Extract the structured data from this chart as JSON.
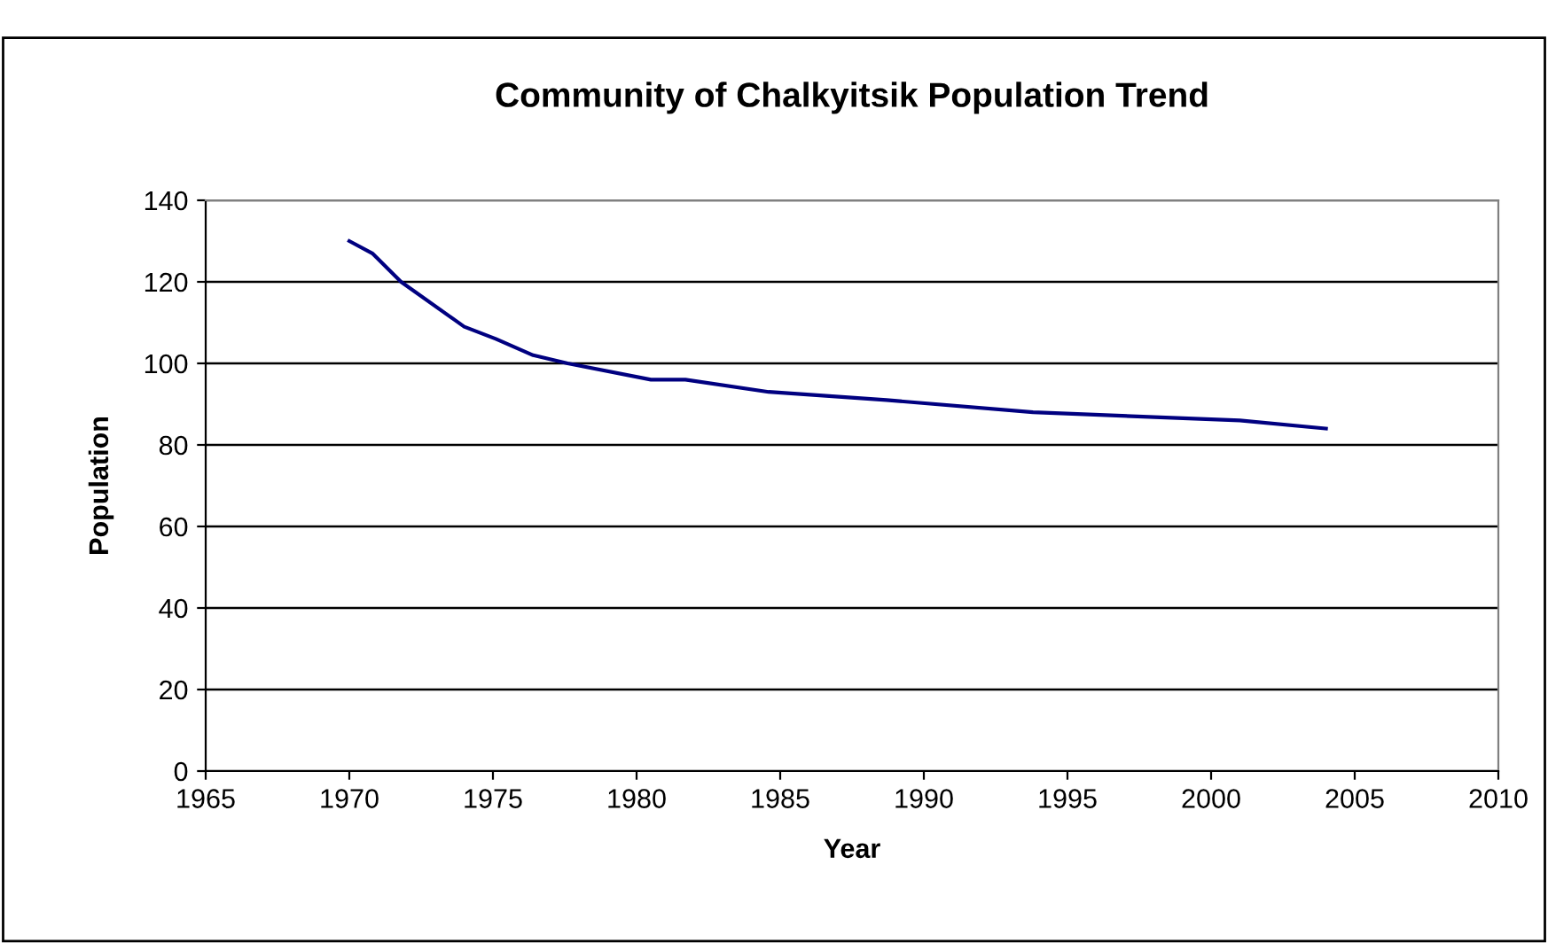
{
  "chart_data": {
    "type": "line",
    "title": "Community of Chalkyitsik Population Trend",
    "xlabel": "Year",
    "ylabel": "Population",
    "series": [
      {
        "color": "#000080",
        "x": [
          1970,
          1970.8,
          1971.8,
          1974,
          1975.1,
          1976.4,
          1977.6,
          1980.5,
          1981.7,
          1984.6,
          1988.7,
          1993.8,
          2001,
          2004
        ],
        "values": [
          130,
          127,
          120,
          109,
          106,
          102,
          100,
          96,
          96,
          93,
          91,
          88,
          86,
          84
        ]
      }
    ],
    "xlim": [
      1965,
      2010
    ],
    "xticks": [
      1965,
      1970,
      1975,
      1980,
      1985,
      1990,
      1995,
      2000,
      2005,
      2010
    ],
    "ylim": [
      0,
      140
    ],
    "yticks": [
      0,
      20,
      40,
      60,
      80,
      100,
      120,
      140
    ],
    "grid": "y",
    "legend": false,
    "marker": "none",
    "line_style": "solid"
  }
}
